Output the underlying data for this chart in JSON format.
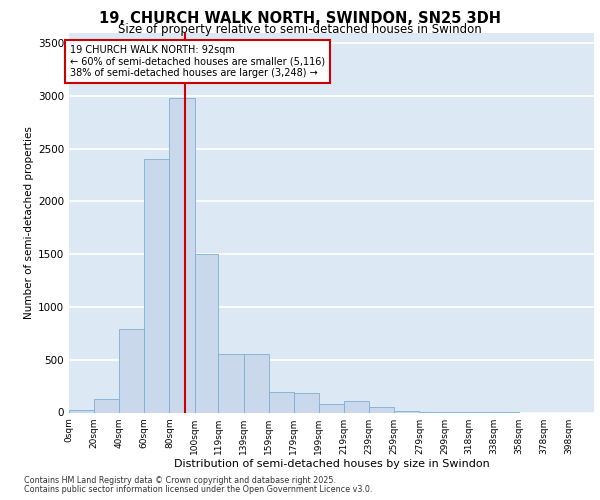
{
  "title_line1": "19, CHURCH WALK NORTH, SWINDON, SN25 3DH",
  "title_line2": "Size of property relative to semi-detached houses in Swindon",
  "xlabel": "Distribution of semi-detached houses by size in Swindon",
  "ylabel": "Number of semi-detached properties",
  "annotation_line1": "19 CHURCH WALK NORTH: 92sqm",
  "annotation_line2": "← 60% of semi-detached houses are smaller (5,116)",
  "annotation_line3": "38% of semi-detached houses are larger (3,248) →",
  "property_size": 92,
  "bar_categories": [
    "0sqm",
    "20sqm",
    "40sqm",
    "60sqm",
    "80sqm",
    "100sqm",
    "119sqm",
    "139sqm",
    "159sqm",
    "179sqm",
    "199sqm",
    "219sqm",
    "239sqm",
    "259sqm",
    "279sqm",
    "299sqm",
    "318sqm",
    "338sqm",
    "358sqm",
    "378sqm",
    "398sqm"
  ],
  "bar_left_edges": [
    0,
    20,
    40,
    60,
    80,
    100,
    119,
    139,
    159,
    179,
    199,
    219,
    239,
    259,
    279,
    299,
    318,
    338,
    358,
    378,
    398
  ],
  "bar_widths": [
    20,
    20,
    20,
    20,
    20,
    19,
    20,
    20,
    20,
    20,
    20,
    20,
    20,
    20,
    20,
    19,
    20,
    20,
    20,
    20,
    20
  ],
  "bar_heights": [
    25,
    130,
    790,
    2400,
    2980,
    1500,
    550,
    550,
    195,
    185,
    85,
    105,
    55,
    18,
    8,
    5,
    2,
    1,
    0,
    0,
    0
  ],
  "bar_color": "#c9d9eb",
  "bar_edgecolor": "#7bafd4",
  "vline_x": 92,
  "vline_color": "#cc0000",
  "ylim": [
    0,
    3600
  ],
  "yticks": [
    0,
    500,
    1000,
    1500,
    2000,
    2500,
    3000,
    3500
  ],
  "xlim_max": 418,
  "background_color": "#dce9f5",
  "grid_color": "#ffffff",
  "footer_line1": "Contains HM Land Registry data © Crown copyright and database right 2025.",
  "footer_line2": "Contains public sector information licensed under the Open Government Licence v3.0."
}
